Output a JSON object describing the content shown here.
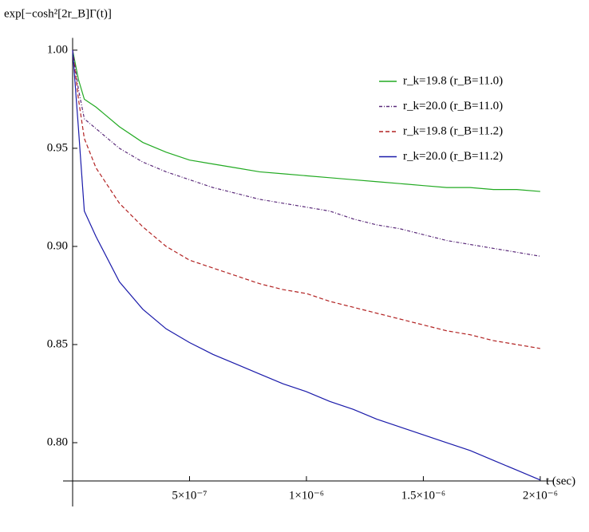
{
  "chart_data": {
    "type": "line",
    "y_label": "exp[−cosh²[2r_B]Γ(t)]",
    "x_label": "t (sec)",
    "x": [
      0,
      2.5e-08,
      5e-08,
      1e-07,
      2e-07,
      3e-07,
      4e-07,
      5e-07,
      6e-07,
      7e-07,
      8e-07,
      9e-07,
      1e-06,
      1.1e-06,
      1.2e-06,
      1.3e-06,
      1.4e-06,
      1.5e-06,
      1.6e-06,
      1.7e-06,
      1.8e-06,
      1.9e-06,
      2e-06
    ],
    "series": [
      {
        "name": "r_k=19.8 (r_B=11.0)",
        "color": "#22aa22",
        "dash": "solid",
        "values": [
          1.0,
          0.985,
          0.975,
          0.971,
          0.961,
          0.953,
          0.948,
          0.944,
          0.942,
          0.94,
          0.938,
          0.937,
          0.936,
          0.935,
          0.934,
          0.933,
          0.932,
          0.931,
          0.93,
          0.93,
          0.929,
          0.929,
          0.928
        ]
      },
      {
        "name": "r_k=20.0 (r_B=11.0)",
        "color": "#5a2a7a",
        "dash": "dashdot",
        "values": [
          1.0,
          0.98,
          0.965,
          0.96,
          0.95,
          0.943,
          0.938,
          0.934,
          0.93,
          0.927,
          0.924,
          0.922,
          0.92,
          0.918,
          0.914,
          0.911,
          0.909,
          0.906,
          0.903,
          0.901,
          0.899,
          0.897,
          0.895
        ]
      },
      {
        "name": "r_k=19.8 (r_B=11.2)",
        "color": "#b22222",
        "dash": "dashed",
        "values": [
          1.0,
          0.975,
          0.955,
          0.94,
          0.922,
          0.91,
          0.9,
          0.893,
          0.889,
          0.885,
          0.881,
          0.878,
          0.876,
          0.872,
          0.869,
          0.866,
          0.863,
          0.86,
          0.857,
          0.855,
          0.852,
          0.85,
          0.848
        ]
      },
      {
        "name": "r_k=20.0 (r_B=11.2)",
        "color": "#1a1aaa",
        "dash": "solid",
        "values": [
          1.0,
          0.96,
          0.918,
          0.905,
          0.882,
          0.868,
          0.858,
          0.851,
          0.845,
          0.84,
          0.835,
          0.83,
          0.826,
          0.821,
          0.817,
          0.812,
          0.808,
          0.804,
          0.8,
          0.796,
          0.791,
          0.786,
          0.781
        ]
      }
    ],
    "xlim": [
      0,
      2.055e-06
    ],
    "ylim": [
      0.7805,
      1.003
    ],
    "xticks": [
      {
        "value": 5e-07,
        "label": "5×10⁻⁷"
      },
      {
        "value": 1e-06,
        "label": "1×10⁻⁶"
      },
      {
        "value": 1.5e-06,
        "label": "1.5×10⁻⁶"
      },
      {
        "value": 2e-06,
        "label": "2×10⁻⁶"
      }
    ],
    "yticks": [
      {
        "value": 0.8,
        "label": "0.80"
      },
      {
        "value": 0.85,
        "label": "0.85"
      },
      {
        "value": 0.9,
        "label": "0.90"
      },
      {
        "value": 0.95,
        "label": "0.95"
      },
      {
        "value": 1.0,
        "label": "1.00"
      }
    ],
    "legend": "upper-right"
  }
}
